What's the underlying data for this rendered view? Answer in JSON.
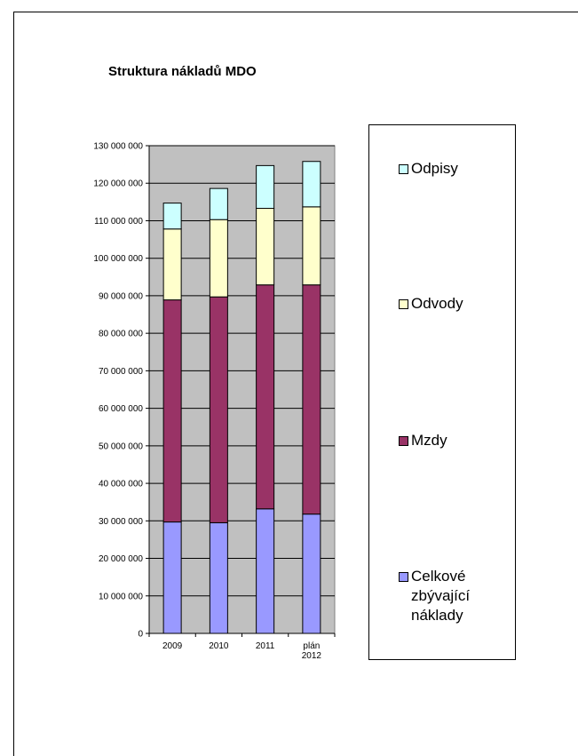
{
  "chart_data": {
    "type": "bar",
    "stacked": true,
    "title": "Struktura nákladů MDO",
    "categories": [
      "2009",
      "2010",
      "2011",
      "plán\n2012"
    ],
    "series": [
      {
        "name": "Celkové\nzbývající\nnáklady",
        "color": "#9999ff",
        "values": [
          29700000,
          29500000,
          33200000,
          31800000
        ]
      },
      {
        "name": "Mzdy",
        "color": "#993366",
        "values": [
          59200000,
          60200000,
          59700000,
          61100000
        ]
      },
      {
        "name": "Odvody",
        "color": "#ffffcc",
        "values": [
          18900000,
          20600000,
          20400000,
          20800000
        ]
      },
      {
        "name": "Odpisy",
        "color": "#ccffff",
        "values": [
          6900000,
          8300000,
          11400000,
          12100000
        ]
      }
    ],
    "ylim": [
      0,
      130000000
    ],
    "yticks": [
      "0",
      "10 000 000",
      "20 000 000",
      "30 000 000",
      "40 000 000",
      "50 000 000",
      "60 000 000",
      "70 000 000",
      "80 000 000",
      "90 000 000",
      "100 000 000",
      "110 000 000",
      "120 000 000",
      "130 000 000"
    ],
    "xlabel": "",
    "ylabel": "",
    "grid": true,
    "plot_background": "#c0c0c0",
    "legend_position": "right"
  }
}
